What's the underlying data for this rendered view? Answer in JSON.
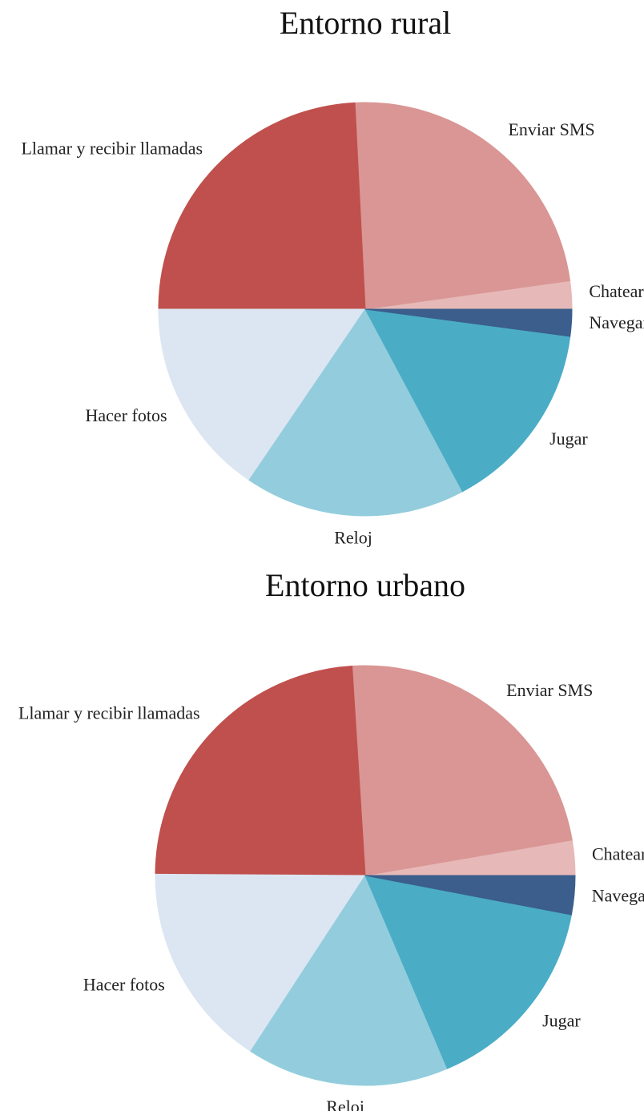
{
  "chart_data": [
    {
      "type": "pie",
      "title": "Entorno rural",
      "categories": [
        "Chatear",
        "Enviar SMS",
        "Llamar y recibir llamadas",
        "Hacer fotos",
        "Reloj",
        "Jugar",
        "Navegar"
      ],
      "values": [
        2.2,
        23.6,
        24.2,
        15.5,
        17.3,
        15.1,
        2.1
      ],
      "colors": [
        "#e6b9b8",
        "#d99694",
        "#c0504d",
        "#dce6f2",
        "#93cddd",
        "#4bacc6",
        "#3b5e8c"
      ]
    },
    {
      "type": "pie",
      "title": "Entorno urbano",
      "categories": [
        "Chatear",
        "Enviar SMS",
        "Llamar y recibir llamadas",
        "Hacer fotos",
        "Reloj",
        "Jugar",
        "Navegar"
      ],
      "values": [
        2.7,
        23.3,
        23.9,
        15.9,
        15.6,
        15.6,
        3.0
      ],
      "colors": [
        "#e6b9b8",
        "#d99694",
        "#c0504d",
        "#dce6f2",
        "#93cddd",
        "#4bacc6",
        "#3b5e8c"
      ]
    }
  ]
}
